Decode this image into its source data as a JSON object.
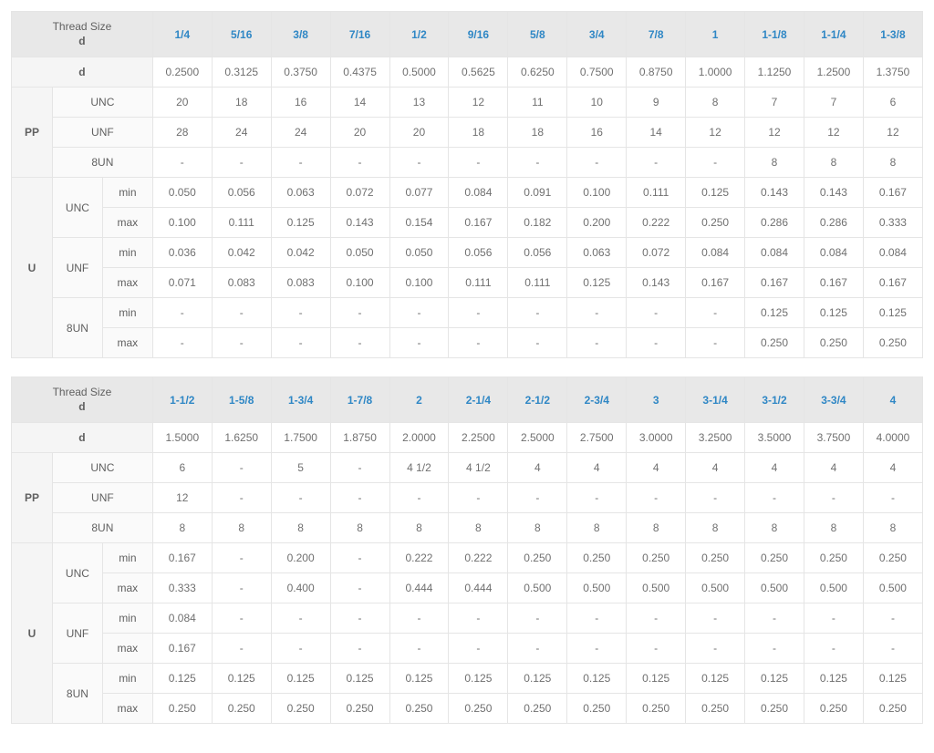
{
  "labels": {
    "thread_size": "Thread Size",
    "d": "d",
    "pp": "PP",
    "u": "U",
    "unc": "UNC",
    "unf": "UNF",
    "8un": "8UN",
    "min": "min",
    "max": "max"
  },
  "tables": [
    {
      "sizes": [
        "1/4",
        "5/16",
        "3/8",
        "7/16",
        "1/2",
        "9/16",
        "5/8",
        "3/4",
        "7/8",
        "1",
        "1-1/8",
        "1-1/4",
        "1-3/8"
      ],
      "d": [
        "0.2500",
        "0.3125",
        "0.3750",
        "0.4375",
        "0.5000",
        "0.5625",
        "0.6250",
        "0.7500",
        "0.8750",
        "1.0000",
        "1.1250",
        "1.2500",
        "1.3750"
      ],
      "pp_unc": [
        "20",
        "18",
        "16",
        "14",
        "13",
        "12",
        "11",
        "10",
        "9",
        "8",
        "7",
        "7",
        "6"
      ],
      "pp_unf": [
        "28",
        "24",
        "24",
        "20",
        "20",
        "18",
        "18",
        "16",
        "14",
        "12",
        "12",
        "12",
        "12"
      ],
      "pp_8un": [
        "-",
        "-",
        "-",
        "-",
        "-",
        "-",
        "-",
        "-",
        "-",
        "-",
        "8",
        "8",
        "8"
      ],
      "u_unc_min": [
        "0.050",
        "0.056",
        "0.063",
        "0.072",
        "0.077",
        "0.084",
        "0.091",
        "0.100",
        "0.111",
        "0.125",
        "0.143",
        "0.143",
        "0.167"
      ],
      "u_unc_max": [
        "0.100",
        "0.111",
        "0.125",
        "0.143",
        "0.154",
        "0.167",
        "0.182",
        "0.200",
        "0.222",
        "0.250",
        "0.286",
        "0.286",
        "0.333"
      ],
      "u_unf_min": [
        "0.036",
        "0.042",
        "0.042",
        "0.050",
        "0.050",
        "0.056",
        "0.056",
        "0.063",
        "0.072",
        "0.084",
        "0.084",
        "0.084",
        "0.084"
      ],
      "u_unf_max": [
        "0.071",
        "0.083",
        "0.083",
        "0.100",
        "0.100",
        "0.111",
        "0.111",
        "0.125",
        "0.143",
        "0.167",
        "0.167",
        "0.167",
        "0.167"
      ],
      "u_8un_min": [
        "-",
        "-",
        "-",
        "-",
        "-",
        "-",
        "-",
        "-",
        "-",
        "-",
        "0.125",
        "0.125",
        "0.125"
      ],
      "u_8un_max": [
        "-",
        "-",
        "-",
        "-",
        "-",
        "-",
        "-",
        "-",
        "-",
        "-",
        "0.250",
        "0.250",
        "0.250"
      ]
    },
    {
      "sizes": [
        "1-1/2",
        "1-5/8",
        "1-3/4",
        "1-7/8",
        "2",
        "2-1/4",
        "2-1/2",
        "2-3/4",
        "3",
        "3-1/4",
        "3-1/2",
        "3-3/4",
        "4"
      ],
      "d": [
        "1.5000",
        "1.6250",
        "1.7500",
        "1.8750",
        "2.0000",
        "2.2500",
        "2.5000",
        "2.7500",
        "3.0000",
        "3.2500",
        "3.5000",
        "3.7500",
        "4.0000"
      ],
      "pp_unc": [
        "6",
        "-",
        "5",
        "-",
        "4 1/2",
        "4 1/2",
        "4",
        "4",
        "4",
        "4",
        "4",
        "4",
        "4"
      ],
      "pp_unf": [
        "12",
        "-",
        "-",
        "-",
        "-",
        "-",
        "-",
        "-",
        "-",
        "-",
        "-",
        "-",
        "-"
      ],
      "pp_8un": [
        "8",
        "8",
        "8",
        "8",
        "8",
        "8",
        "8",
        "8",
        "8",
        "8",
        "8",
        "8",
        "8"
      ],
      "u_unc_min": [
        "0.167",
        "-",
        "0.200",
        "-",
        "0.222",
        "0.222",
        "0.250",
        "0.250",
        "0.250",
        "0.250",
        "0.250",
        "0.250",
        "0.250"
      ],
      "u_unc_max": [
        "0.333",
        "-",
        "0.400",
        "-",
        "0.444",
        "0.444",
        "0.500",
        "0.500",
        "0.500",
        "0.500",
        "0.500",
        "0.500",
        "0.500"
      ],
      "u_unf_min": [
        "0.084",
        "-",
        "-",
        "-",
        "-",
        "-",
        "-",
        "-",
        "-",
        "-",
        "-",
        "-",
        "-"
      ],
      "u_unf_max": [
        "0.167",
        "-",
        "-",
        "-",
        "-",
        "-",
        "-",
        "-",
        "-",
        "-",
        "-",
        "-",
        "-"
      ],
      "u_8un_min": [
        "0.125",
        "0.125",
        "0.125",
        "0.125",
        "0.125",
        "0.125",
        "0.125",
        "0.125",
        "0.125",
        "0.125",
        "0.125",
        "0.125",
        "0.125"
      ],
      "u_8un_max": [
        "0.250",
        "0.250",
        "0.250",
        "0.250",
        "0.250",
        "0.250",
        "0.250",
        "0.250",
        "0.250",
        "0.250",
        "0.250",
        "0.250",
        "0.250"
      ]
    }
  ]
}
